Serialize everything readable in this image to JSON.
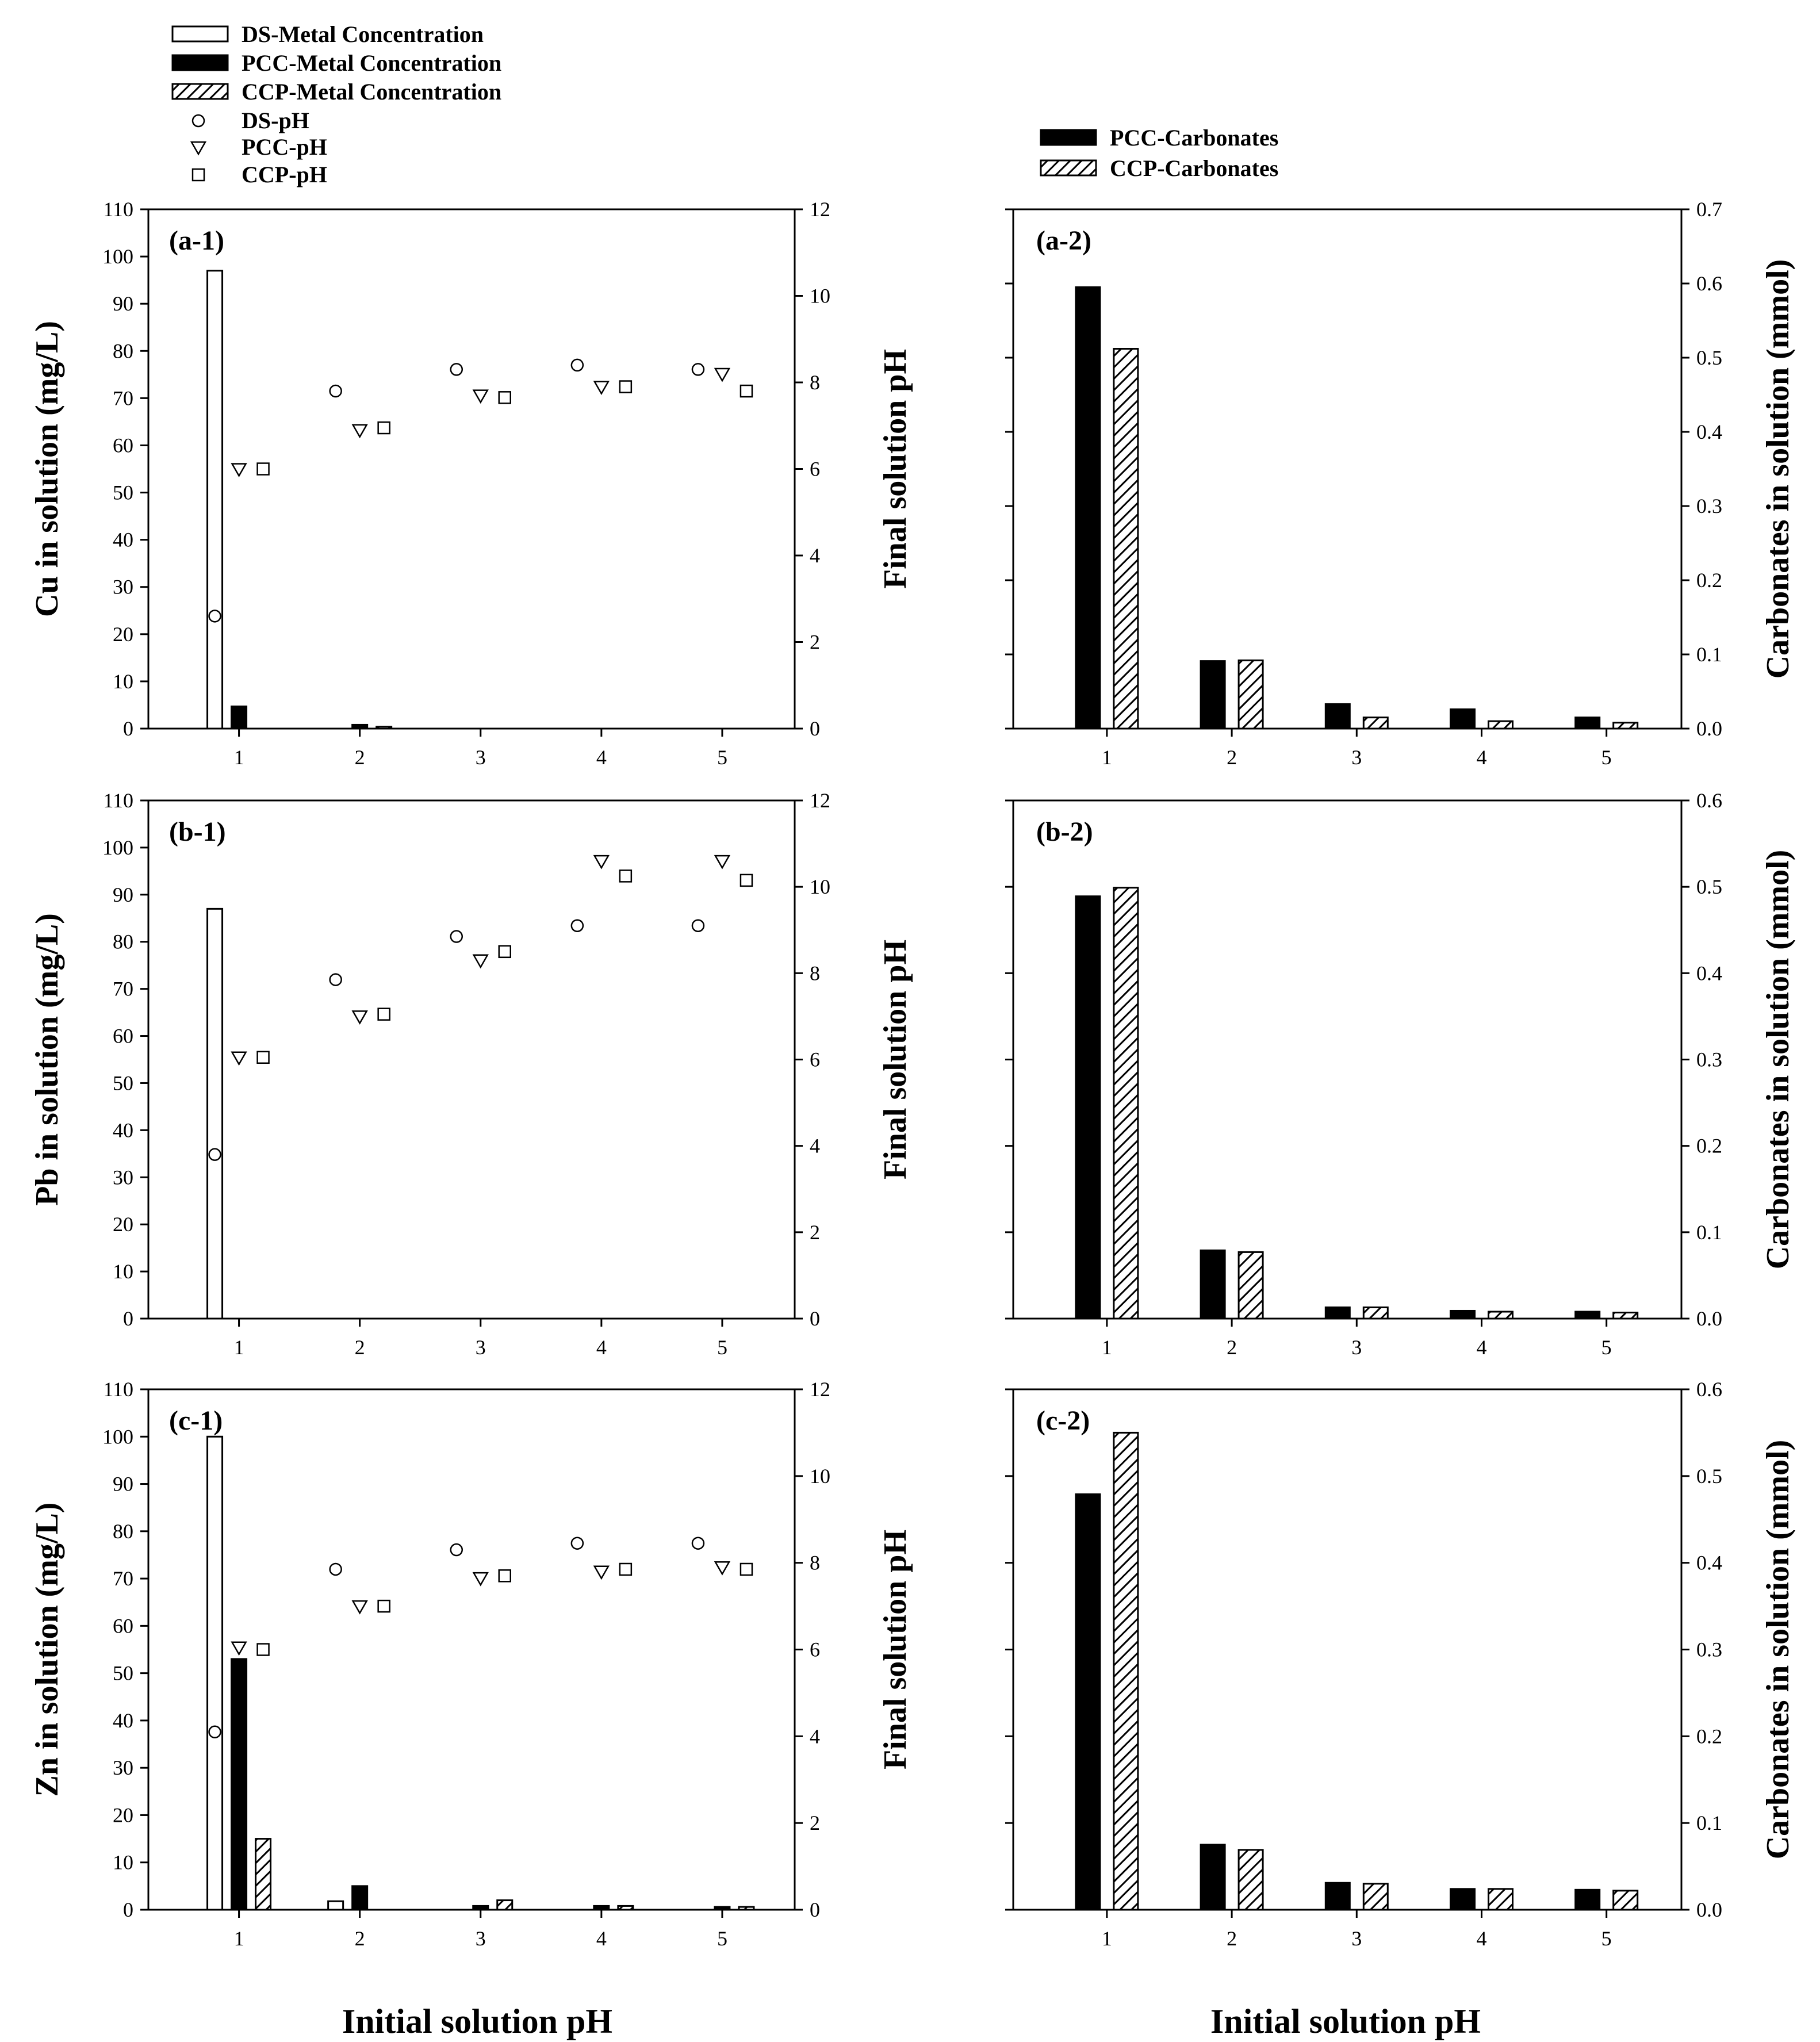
{
  "figure": {
    "legend_left": [
      {
        "label": "DS-Metal Concentration",
        "symbol": "bar-open"
      },
      {
        "label": "PCC-Metal Concentration",
        "symbol": "bar-solid"
      },
      {
        "label": "CCP-Metal Concentration",
        "symbol": "bar-hatched"
      },
      {
        "label": "DS-pH",
        "symbol": "circle"
      },
      {
        "label": "PCC-pH",
        "symbol": "triangle-down"
      },
      {
        "label": "CCP-pH",
        "symbol": "square"
      }
    ],
    "legend_right": [
      {
        "label": "PCC-Carbonates",
        "symbol": "bar-solid"
      },
      {
        "label": "CCP-Carbonates",
        "symbol": "bar-hatched"
      }
    ],
    "xlabel": "Initial solution pH"
  },
  "chart_data": [
    {
      "type": "bar+scatter",
      "panel": "(a-1)",
      "categories": [
        "1",
        "2",
        "3",
        "4",
        "5"
      ],
      "ylabel": "Cu in solution (mg/L)",
      "ylim": [
        0,
        110
      ],
      "yticks": [
        0,
        10,
        20,
        30,
        40,
        50,
        60,
        70,
        80,
        90,
        100,
        110
      ],
      "y2label": "Final solution pH",
      "y2lim": [
        0,
        12
      ],
      "y2ticks": [
        0,
        2,
        4,
        6,
        8,
        10,
        12
      ],
      "bars": [
        {
          "name": "DS-Metal Concentration",
          "values": [
            97,
            0,
            0,
            0,
            0
          ]
        },
        {
          "name": "PCC-Metal Concentration",
          "values": [
            4.7,
            0.8,
            0,
            0,
            0
          ]
        },
        {
          "name": "CCP-Metal Concentration",
          "values": [
            0,
            0.4,
            0,
            0,
            0
          ]
        }
      ],
      "points": [
        {
          "name": "DS-pH",
          "values": [
            2.6,
            7.8,
            8.3,
            8.4,
            8.3
          ]
        },
        {
          "name": "PCC-pH",
          "values": [
            6.0,
            6.9,
            7.7,
            7.9,
            8.2
          ]
        },
        {
          "name": "CCP-pH",
          "values": [
            6.0,
            6.95,
            7.65,
            7.9,
            7.8
          ]
        }
      ]
    },
    {
      "type": "bar",
      "panel": "(a-2)",
      "categories": [
        "1",
        "2",
        "3",
        "4",
        "5"
      ],
      "ylabel": "Carbonates in solution (mmol)",
      "ylim": [
        0,
        0.7
      ],
      "yticks": [
        "0.0",
        "0.1",
        "0.2",
        "0.3",
        "0.4",
        "0.5",
        "0.6",
        "0.7"
      ],
      "series": [
        {
          "name": "PCC-Carbonates",
          "values": [
            0.595,
            0.091,
            0.033,
            0.026,
            0.015
          ]
        },
        {
          "name": "CCP-Carbonates",
          "values": [
            0.512,
            0.092,
            0.015,
            0.01,
            0.008
          ]
        }
      ]
    },
    {
      "type": "bar+scatter",
      "panel": "(b-1)",
      "categories": [
        "1",
        "2",
        "3",
        "4",
        "5"
      ],
      "ylabel": "Pb in solution (mg/L)",
      "ylim": [
        0,
        110
      ],
      "yticks": [
        0,
        10,
        20,
        30,
        40,
        50,
        60,
        70,
        80,
        90,
        100,
        110
      ],
      "y2label": "Final solution pH",
      "y2lim": [
        0,
        12
      ],
      "y2ticks": [
        0,
        2,
        4,
        6,
        8,
        10,
        12
      ],
      "bars": [
        {
          "name": "DS-Metal Concentration",
          "values": [
            87,
            0,
            0,
            0,
            0
          ]
        },
        {
          "name": "PCC-Metal Concentration",
          "values": [
            0,
            0,
            0,
            0,
            0
          ]
        },
        {
          "name": "CCP-Metal Concentration",
          "values": [
            0,
            0,
            0,
            0,
            0
          ]
        }
      ],
      "points": [
        {
          "name": "DS-pH",
          "values": [
            3.8,
            7.85,
            8.85,
            9.1,
            9.1
          ]
        },
        {
          "name": "PCC-pH",
          "values": [
            6.05,
            7.0,
            8.3,
            10.6,
            10.6
          ]
        },
        {
          "name": "CCP-pH",
          "values": [
            6.05,
            7.05,
            8.5,
            10.25,
            10.15
          ]
        }
      ]
    },
    {
      "type": "bar",
      "panel": "(b-2)",
      "categories": [
        "1",
        "2",
        "3",
        "4",
        "5"
      ],
      "ylabel": "Carbonates in solution (mmol)",
      "ylim": [
        0,
        0.6
      ],
      "yticks": [
        "0.0",
        "0.1",
        "0.2",
        "0.3",
        "0.4",
        "0.5",
        "0.6"
      ],
      "series": [
        {
          "name": "PCC-Carbonates",
          "values": [
            0.489,
            0.079,
            0.013,
            0.009,
            0.008
          ]
        },
        {
          "name": "CCP-Carbonates",
          "values": [
            0.499,
            0.077,
            0.013,
            0.008,
            0.007
          ]
        }
      ]
    },
    {
      "type": "bar+scatter",
      "panel": "(c-1)",
      "categories": [
        "1",
        "2",
        "3",
        "4",
        "5"
      ],
      "ylabel": "Zn in solution (mg/L)",
      "ylim": [
        0,
        110
      ],
      "yticks": [
        0,
        10,
        20,
        30,
        40,
        50,
        60,
        70,
        80,
        90,
        100,
        110
      ],
      "y2label": "Final solution pH",
      "y2lim": [
        0,
        12
      ],
      "y2ticks": [
        0,
        2,
        4,
        6,
        8,
        10,
        12
      ],
      "bars": [
        {
          "name": "DS-Metal Concentration",
          "values": [
            100,
            1.8,
            0,
            0,
            0
          ]
        },
        {
          "name": "PCC-Metal Concentration",
          "values": [
            53,
            5,
            0.8,
            0.8,
            0.6
          ]
        },
        {
          "name": "CCP-Metal Concentration",
          "values": [
            15,
            0,
            2,
            0.8,
            0.6
          ]
        }
      ],
      "points": [
        {
          "name": "DS-pH",
          "values": [
            4.1,
            7.85,
            8.3,
            8.45,
            8.45
          ]
        },
        {
          "name": "PCC-pH",
          "values": [
            6.05,
            7.0,
            7.65,
            7.8,
            7.9
          ]
        },
        {
          "name": "CCP-pH",
          "values": [
            6.0,
            7.0,
            7.7,
            7.85,
            7.85
          ]
        }
      ]
    },
    {
      "type": "bar",
      "panel": "(c-2)",
      "categories": [
        "1",
        "2",
        "3",
        "4",
        "5"
      ],
      "ylabel": "Carbonates in solution (mmol)",
      "ylim": [
        0,
        0.6
      ],
      "yticks": [
        "0.0",
        "0.1",
        "0.2",
        "0.3",
        "0.4",
        "0.5",
        "0.6"
      ],
      "series": [
        {
          "name": "PCC-Carbonates",
          "values": [
            0.479,
            0.075,
            0.031,
            0.024,
            0.023
          ]
        },
        {
          "name": "CCP-Carbonates",
          "values": [
            0.55,
            0.069,
            0.03,
            0.024,
            0.022
          ]
        }
      ]
    }
  ]
}
